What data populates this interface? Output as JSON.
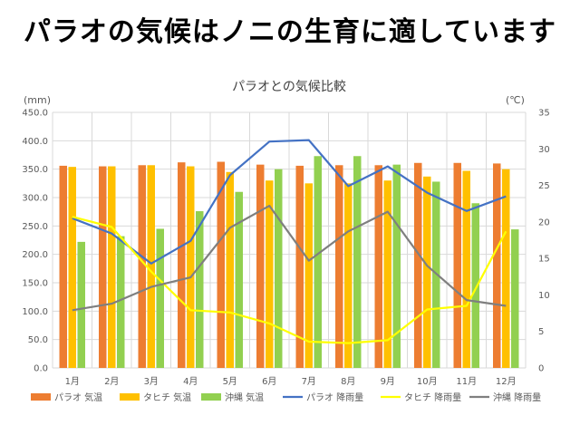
{
  "headline": "パラオの気候はノニの生育に適しています",
  "chart_data": {
    "type": "bar",
    "title": "パラオとの気候比較",
    "ylabel_left": "(mm)",
    "ylabel_right": "(℃)",
    "categories": [
      "1月",
      "2月",
      "3月",
      "4月",
      "5月",
      "6月",
      "7月",
      "8月",
      "9月",
      "10月",
      "11月",
      "12月"
    ],
    "ylim_left": [
      0,
      450
    ],
    "ylim_right": [
      0,
      35
    ],
    "left_ticks": [
      "0.0",
      "50.0",
      "100.0",
      "150.0",
      "200.0",
      "250.0",
      "300.0",
      "350.0",
      "400.0",
      "450.0"
    ],
    "right_ticks": [
      "0",
      "5",
      "10",
      "15",
      "20",
      "25",
      "30",
      "35"
    ],
    "grid": true,
    "legend_position": "bottom",
    "bar_series": [
      {
        "name": "パラオ 気温",
        "color": "#ED7D31",
        "axis": "left",
        "values": [
          356,
          355,
          357,
          362,
          363,
          358,
          356,
          357,
          357,
          361,
          361,
          360
        ]
      },
      {
        "name": "タヒチ 気温",
        "color": "#FFC000",
        "axis": "left",
        "values": [
          354,
          355,
          357,
          355,
          345,
          330,
          325,
          325,
          330,
          337,
          347,
          350
        ]
      },
      {
        "name": "沖縄 気温",
        "color": "#92D050",
        "axis": "left",
        "values": [
          222,
          232,
          245,
          276,
          310,
          350,
          373,
          373,
          358,
          328,
          290,
          244
        ]
      }
    ],
    "line_series": [
      {
        "name": "パラオ 降雨量",
        "color": "#4472C4",
        "axis": "right",
        "values": [
          20.5,
          18.4,
          14.3,
          17.4,
          26.4,
          31.0,
          31.2,
          24.9,
          27.6,
          24.0,
          21.5,
          23.5
        ]
      },
      {
        "name": "タヒチ 降雨量",
        "color": "#FFFF00",
        "axis": "right",
        "values": [
          20.7,
          19.3,
          13.2,
          7.9,
          7.6,
          6.1,
          3.6,
          3.4,
          3.8,
          8.0,
          8.5,
          18.7
        ]
      },
      {
        "name": "沖縄 降雨量",
        "color": "#7F7F7F",
        "axis": "right",
        "values": [
          7.9,
          8.8,
          11.1,
          12.4,
          19.2,
          22.2,
          14.7,
          18.7,
          21.4,
          14.0,
          9.3,
          8.5
        ]
      }
    ]
  }
}
